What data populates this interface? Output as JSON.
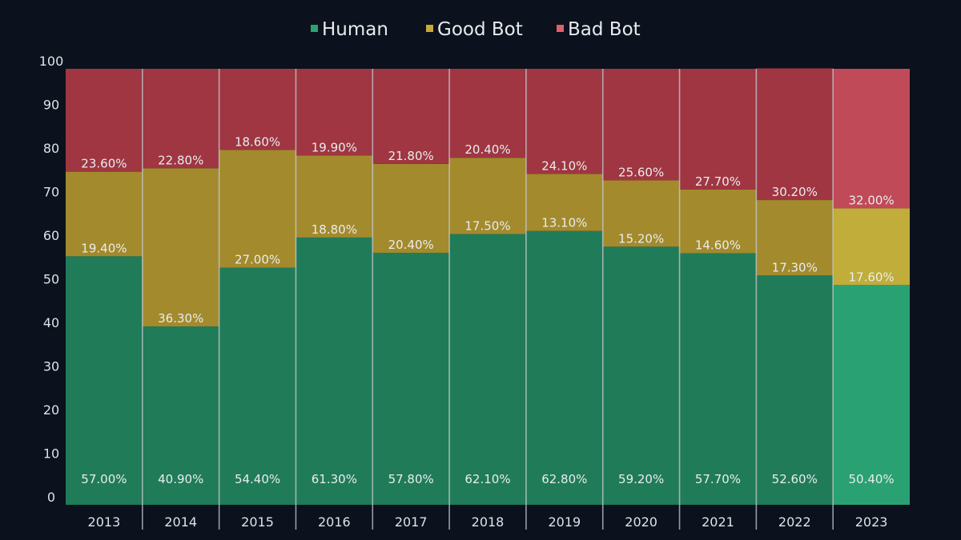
{
  "chart_data": {
    "type": "bar",
    "stacked": true,
    "categories": [
      "2013",
      "2014",
      "2015",
      "2016",
      "2017",
      "2018",
      "2019",
      "2020",
      "2021",
      "2022",
      "2023"
    ],
    "series": [
      {
        "name": "Human",
        "values": [
          57.0,
          40.9,
          54.4,
          61.3,
          57.8,
          62.1,
          62.8,
          59.2,
          57.7,
          52.6,
          50.4
        ],
        "labels": [
          "57.00%",
          "40.90%",
          "54.40%",
          "61.30%",
          "57.80%",
          "62.10%",
          "62.80%",
          "59.20%",
          "57.70%",
          "52.60%",
          "50.40%"
        ]
      },
      {
        "name": "Good Bot",
        "values": [
          19.4,
          36.3,
          27.0,
          18.8,
          20.4,
          17.5,
          13.1,
          15.2,
          14.6,
          17.3,
          17.6
        ],
        "labels": [
          "19.40%",
          "36.30%",
          "27.00%",
          "18.80%",
          "20.40%",
          "17.50%",
          "13.10%",
          "15.20%",
          "14.60%",
          "17.30%",
          "17.60%"
        ]
      },
      {
        "name": "Bad Bot",
        "values": [
          23.6,
          22.8,
          18.6,
          19.9,
          21.8,
          20.4,
          24.1,
          25.6,
          27.7,
          30.2,
          32.0
        ],
        "labels": [
          "23.60%",
          "22.80%",
          "18.60%",
          "19.90%",
          "21.80%",
          "20.40%",
          "24.10%",
          "25.60%",
          "27.70%",
          "30.20%",
          "32.00%"
        ]
      }
    ],
    "ylim": [
      0,
      100
    ],
    "yticks": [
      "0",
      "10",
      "20",
      "30",
      "40",
      "50",
      "60",
      "70",
      "80",
      "90",
      "100"
    ],
    "legend_position": "top-center",
    "colors": {
      "Human": "#207b59",
      "Good Bot": "#a38a2c",
      "Bad Bot": "#9f3641",
      "Human_highlight": "#2aa173",
      "Good Bot_highlight": "#c0ad3a",
      "Bad Bot_highlight": "#c04a57",
      "legend_Human": "#2aa173",
      "legend_Good Bot": "#c9a83a",
      "legend_Bad Bot": "#e0606a"
    },
    "highlight_category": "2023"
  }
}
